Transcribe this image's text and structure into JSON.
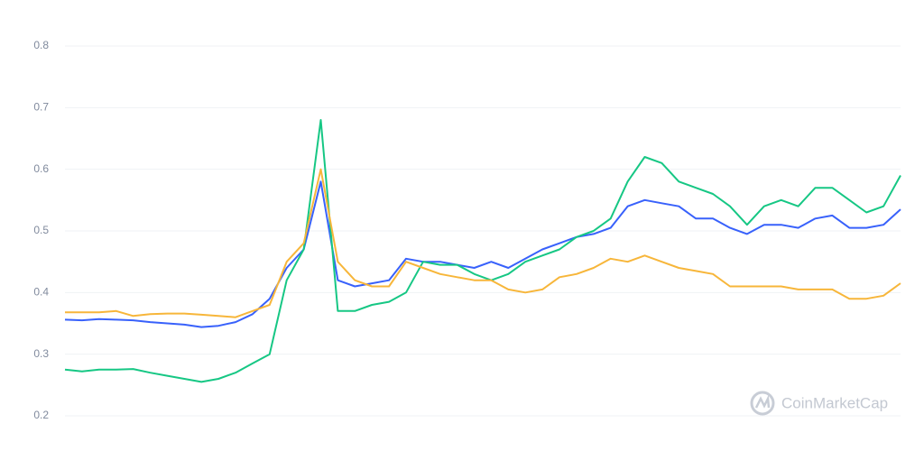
{
  "chart_data": {
    "type": "line",
    "ylim": [
      0.2,
      0.8
    ],
    "yticks": [
      0.2,
      0.3,
      0.4,
      0.5,
      0.6,
      0.7,
      0.8
    ],
    "grid": true,
    "watermark": "CoinMarketCap",
    "series": [
      {
        "color": "#3861fb",
        "values": [
          0.356,
          0.355,
          0.357,
          0.356,
          0.355,
          0.352,
          0.35,
          0.348,
          0.344,
          0.346,
          0.352,
          0.365,
          0.39,
          0.44,
          0.47,
          0.58,
          0.42,
          0.41,
          0.415,
          0.42,
          0.455,
          0.45,
          0.45,
          0.445,
          0.44,
          0.45,
          0.44,
          0.455,
          0.47,
          0.48,
          0.49,
          0.495,
          0.505,
          0.54,
          0.55,
          0.545,
          0.54,
          0.52,
          0.52,
          0.505,
          0.495,
          0.51,
          0.51,
          0.505,
          0.52,
          0.525,
          0.505,
          0.505,
          0.51,
          0.535
        ]
      },
      {
        "color": "#16c784",
        "values": [
          0.275,
          0.272,
          0.275,
          0.275,
          0.276,
          0.27,
          0.265,
          0.26,
          0.255,
          0.26,
          0.27,
          0.285,
          0.3,
          0.42,
          0.47,
          0.68,
          0.37,
          0.37,
          0.38,
          0.385,
          0.4,
          0.45,
          0.445,
          0.445,
          0.43,
          0.42,
          0.43,
          0.45,
          0.46,
          0.47,
          0.49,
          0.5,
          0.52,
          0.58,
          0.62,
          0.61,
          0.58,
          0.57,
          0.56,
          0.54,
          0.51,
          0.54,
          0.55,
          0.54,
          0.57,
          0.57,
          0.55,
          0.53,
          0.54,
          0.59
        ]
      },
      {
        "color": "#f7b63a",
        "values": [
          0.368,
          0.368,
          0.368,
          0.37,
          0.362,
          0.365,
          0.366,
          0.366,
          0.364,
          0.362,
          0.36,
          0.37,
          0.38,
          0.45,
          0.48,
          0.6,
          0.45,
          0.42,
          0.41,
          0.41,
          0.45,
          0.44,
          0.43,
          0.425,
          0.42,
          0.42,
          0.405,
          0.4,
          0.405,
          0.425,
          0.43,
          0.44,
          0.455,
          0.45,
          0.46,
          0.45,
          0.44,
          0.435,
          0.43,
          0.41,
          0.41,
          0.41,
          0.41,
          0.405,
          0.405,
          0.405,
          0.39,
          0.39,
          0.395,
          0.415
        ]
      }
    ]
  }
}
